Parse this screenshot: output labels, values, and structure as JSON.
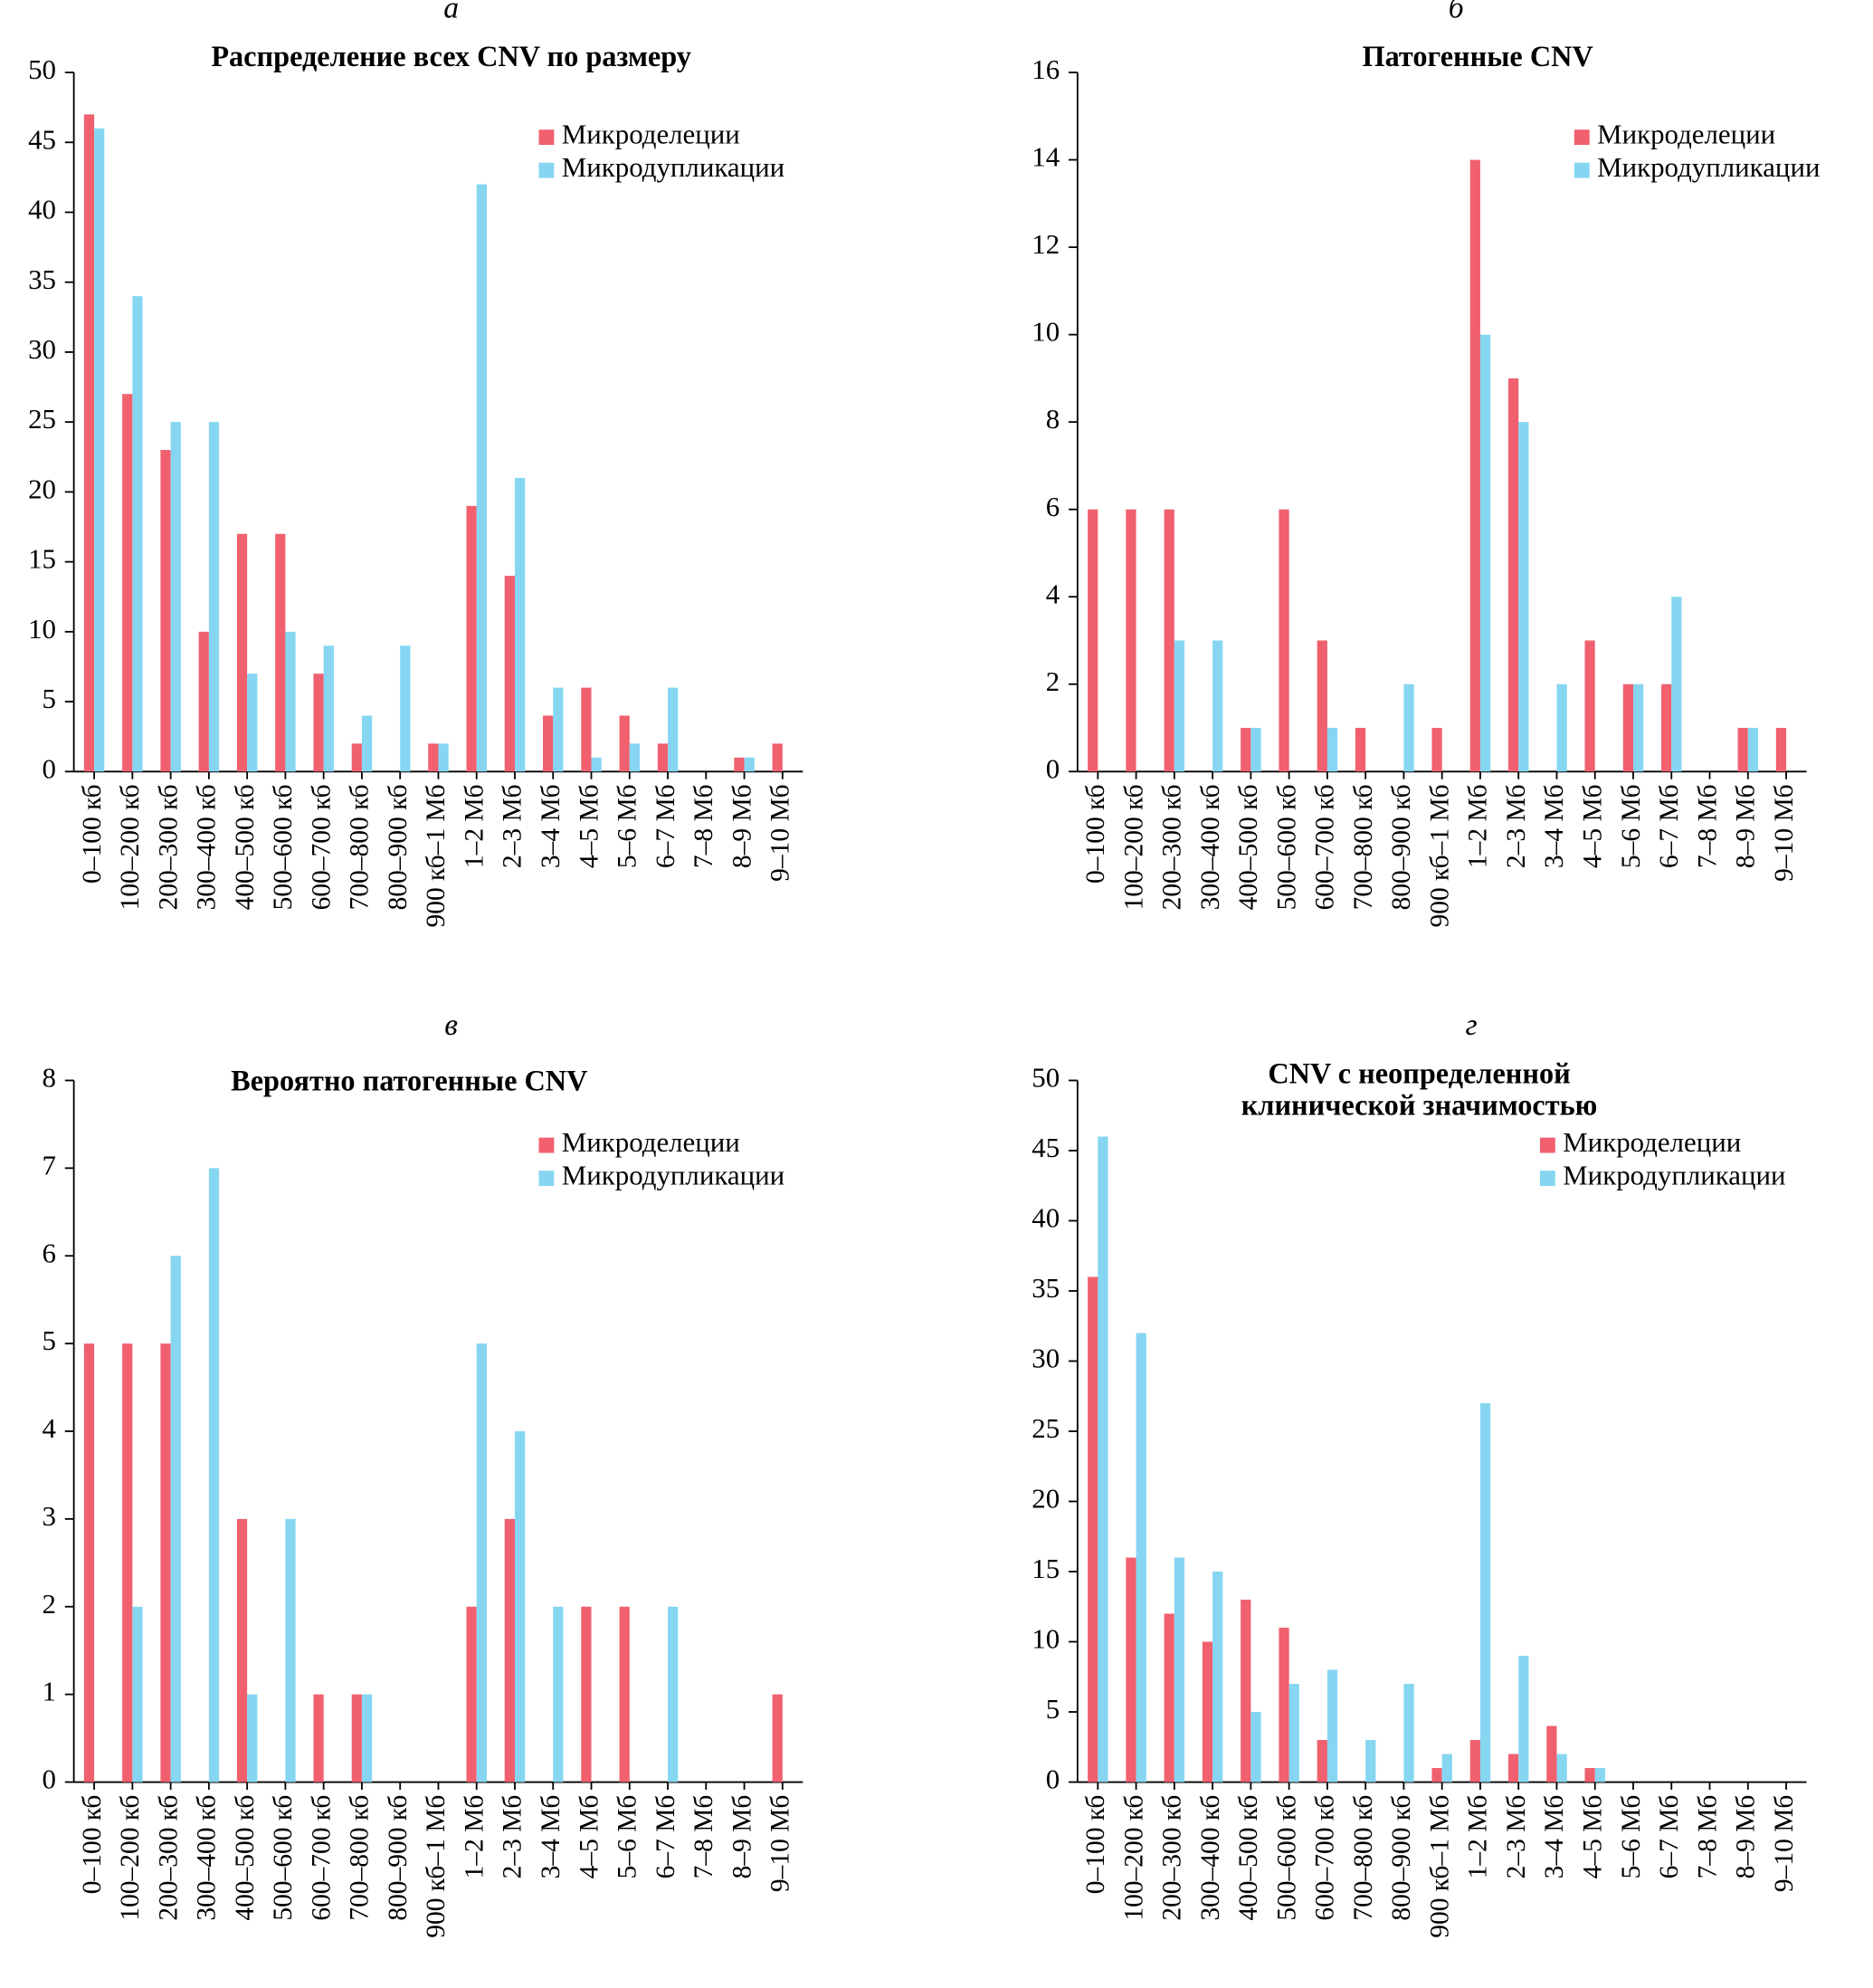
{
  "chart_data": [
    {
      "type": "bar",
      "label": "а",
      "title": "Распределение всех CNV по размеру",
      "categories": [
        "0–100 кб",
        "100–200 кб",
        "200–300 кб",
        "300–400 кб",
        "400–500 кб",
        "500–600 кб",
        "600–700 кб",
        "700–800 кб",
        "800–900 кб",
        "900 кб–1 Мб",
        "1–2 Мб",
        "2–3 Мб",
        "3–4 Мб",
        "4–5 Мб",
        "5–6 Мб",
        "6–7 Мб",
        "7–8 Мб",
        "8–9 Мб",
        "9–10 Мб"
      ],
      "series": [
        {
          "name": "Микроделеции",
          "color": "#f0606e",
          "values": [
            47,
            27,
            23,
            10,
            17,
            17,
            7,
            2,
            0,
            2,
            19,
            14,
            4,
            6,
            4,
            2,
            0,
            1,
            2
          ]
        },
        {
          "name": "Микродупликации",
          "color": "#86d6f2",
          "values": [
            46,
            34,
            25,
            25,
            7,
            10,
            9,
            4,
            9,
            2,
            42,
            21,
            6,
            1,
            2,
            6,
            0,
            1,
            0
          ]
        }
      ],
      "ylim": [
        0,
        50
      ],
      "yticks": [
        0,
        5,
        10,
        15,
        20,
        25,
        30,
        35,
        40,
        45,
        50
      ],
      "legend": "upper right"
    },
    {
      "type": "bar",
      "label": "б",
      "title": "Патогенные CNV",
      "categories": [
        "0–100 кб",
        "100–200 кб",
        "200–300 кб",
        "300–400 кб",
        "400–500 кб",
        "500–600 кб",
        "600–700 кб",
        "700–800 кб",
        "800–900 кб",
        "900 кб–1 Мб",
        "1–2 Мб",
        "2–3 Мб",
        "3–4 Мб",
        "4–5 Мб",
        "5–6 Мб",
        "6–7 Мб",
        "7–8 Мб",
        "8–9 Мб",
        "9–10 Мб"
      ],
      "series": [
        {
          "name": "Микроделеции",
          "color": "#f0606e",
          "values": [
            6,
            6,
            6,
            0,
            1,
            6,
            3,
            1,
            0,
            1,
            14,
            9,
            0,
            3,
            2,
            2,
            0,
            1,
            1
          ]
        },
        {
          "name": "Микродупликации",
          "color": "#86d6f2",
          "values": [
            0,
            0,
            3,
            3,
            1,
            0,
            1,
            0,
            2,
            0,
            10,
            8,
            2,
            0,
            2,
            4,
            0,
            1,
            0
          ]
        }
      ],
      "ylim": [
        0,
        16
      ],
      "yticks": [
        0,
        2,
        4,
        6,
        8,
        10,
        12,
        14,
        16
      ],
      "legend": "upper right"
    },
    {
      "type": "bar",
      "label": "в",
      "title": "Вероятно патогенные CNV",
      "categories": [
        "0–100 кб",
        "100–200 кб",
        "200–300 кб",
        "300–400 кб",
        "400–500 кб",
        "500–600 кб",
        "600–700 кб",
        "700–800 кб",
        "800–900 кб",
        "900 кб–1 Мб",
        "1–2 Мб",
        "2–3 Мб",
        "3–4 Мб",
        "4–5 Мб",
        "5–6 Мб",
        "6–7 Мб",
        "7–8 Мб",
        "8–9 Мб",
        "9–10 Мб"
      ],
      "series": [
        {
          "name": "Микроделеции",
          "color": "#f0606e",
          "values": [
            5,
            5,
            5,
            0,
            3,
            0,
            1,
            1,
            0,
            0,
            2,
            3,
            0,
            2,
            2,
            0,
            0,
            0,
            1
          ]
        },
        {
          "name": "Микродупликации",
          "color": "#86d6f2",
          "values": [
            0,
            2,
            6,
            7,
            1,
            3,
            0,
            1,
            0,
            0,
            5,
            4,
            2,
            0,
            0,
            2,
            0,
            0,
            0
          ]
        }
      ],
      "ylim": [
        0,
        8
      ],
      "yticks": [
        0,
        1,
        2,
        3,
        4,
        5,
        6,
        7,
        8
      ],
      "legend": "upper right"
    },
    {
      "type": "bar",
      "label": "г",
      "title": [
        "CNV с неопределенной",
        "клинической значимостью"
      ],
      "categories": [
        "0–100 кб",
        "100–200 кб",
        "200–300 кб",
        "300–400 кб",
        "400–500 кб",
        "500–600 кб",
        "600–700 кб",
        "700–800 кб",
        "800–900 кб",
        "900 кб–1 Мб",
        "1–2 Мб",
        "2–3 Мб",
        "3–4 Мб",
        "4–5 Мб",
        "5–6 Мб",
        "6–7 Мб",
        "7–8 Мб",
        "8–9 Мб",
        "9–10 Мб"
      ],
      "series": [
        {
          "name": "Микроделеции",
          "color": "#f0606e",
          "values": [
            36,
            16,
            12,
            10,
            13,
            11,
            3,
            0,
            0,
            1,
            3,
            2,
            4,
            1,
            0,
            0,
            0,
            0,
            0
          ]
        },
        {
          "name": "Микродупликации",
          "color": "#86d6f2",
          "values": [
            46,
            32,
            16,
            15,
            5,
            7,
            8,
            3,
            7,
            2,
            27,
            9,
            2,
            1,
            0,
            0,
            0,
            0,
            0
          ]
        }
      ],
      "ylim": [
        0,
        50
      ],
      "yticks": [
        0,
        5,
        10,
        15,
        20,
        25,
        30,
        35,
        40,
        45,
        50
      ],
      "legend": "upper right"
    }
  ]
}
